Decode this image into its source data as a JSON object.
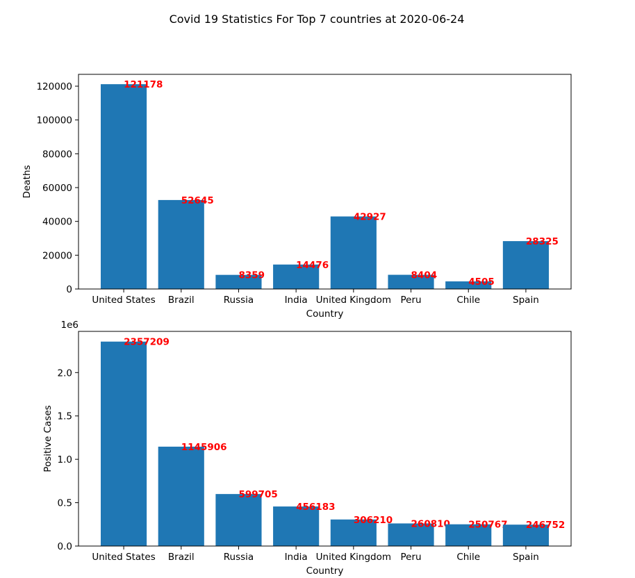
{
  "figure": {
    "title": "Covid 19 Statistics For Top 7 countries at 2020-06-24"
  },
  "colors": {
    "bar": "#1f77b4",
    "data_label": "#ff0000",
    "axis": "#000000"
  },
  "chart_data": [
    {
      "type": "bar",
      "categories": [
        "United States",
        "Brazil",
        "Russia",
        "India",
        "United Kingdom",
        "Peru",
        "Chile",
        "Spain"
      ],
      "values": [
        121178,
        52645,
        8359,
        14476,
        42927,
        8404,
        4505,
        28325
      ],
      "data_labels": [
        "121178",
        "52645",
        "8359",
        "14476",
        "42927",
        "8404",
        "4505",
        "28325"
      ],
      "xlabel": "Country",
      "ylabel": "Deaths",
      "ylim": [
        0,
        127000
      ],
      "yticks": [
        0,
        20000,
        40000,
        60000,
        80000,
        100000,
        120000
      ],
      "ytick_labels": [
        "0",
        "20000",
        "40000",
        "60000",
        "80000",
        "100000",
        "120000"
      ],
      "offset_text": "",
      "grid": false
    },
    {
      "type": "bar",
      "categories": [
        "United States",
        "Brazil",
        "Russia",
        "India",
        "United Kingdom",
        "Peru",
        "Chile",
        "Spain"
      ],
      "values": [
        2357209,
        1145906,
        599705,
        456183,
        306210,
        260810,
        250767,
        246752
      ],
      "data_labels": [
        "2357209",
        "1145906",
        "599705",
        "456183",
        "306210",
        "260810",
        "250767",
        "246752"
      ],
      "xlabel": "Country",
      "ylabel": "Positive Cases",
      "ylim": [
        0,
        2475000
      ],
      "yticks": [
        0,
        500000,
        1000000,
        1500000,
        2000000
      ],
      "ytick_labels": [
        "0.0",
        "0.5",
        "1.0",
        "1.5",
        "2.0"
      ],
      "offset_text": "1e6",
      "grid": false
    }
  ]
}
